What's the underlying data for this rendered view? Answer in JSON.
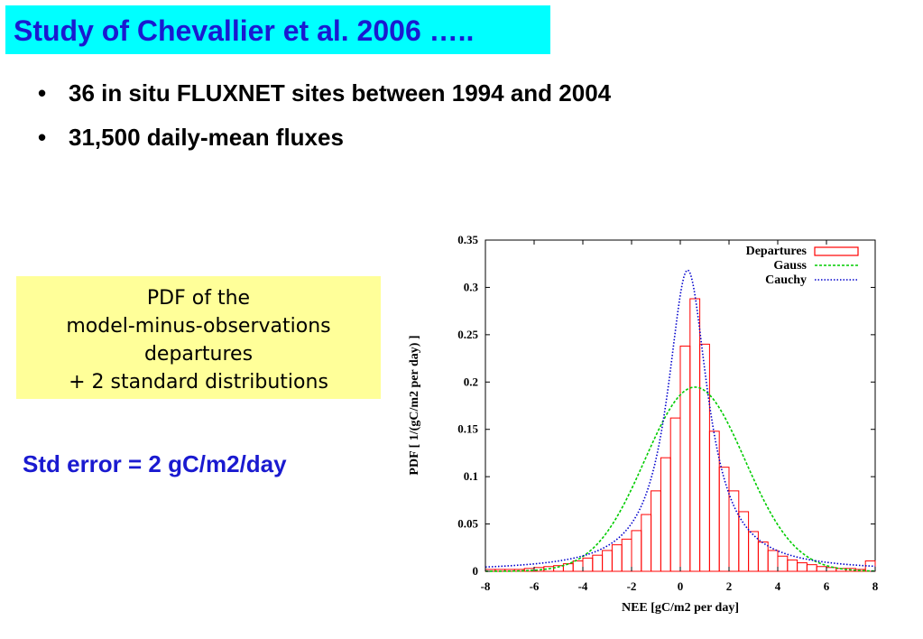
{
  "slide": {
    "title": "Study of Chevallier et al. 2006 …..",
    "bullets": [
      "36 in situ FLUXNET sites between 1994 and 2004",
      "31,500 daily-mean fluxes"
    ],
    "bullet_glyph": "•",
    "note_lines": [
      "PDF of the",
      "model-minus-observations",
      "departures",
      "+ 2 standard distributions"
    ],
    "std_error": "Std error = 2 gC/m2/day",
    "colors": {
      "title_bg": "#00ffff",
      "title_text": "#1a1ad0",
      "note_bg": "#ffff99",
      "std_error_text": "#1a1ad0"
    }
  },
  "chart_data": {
    "type": "bar",
    "xlabel": "NEE [gC/m2 per day]",
    "ylabel": "PDF [ 1/(gC/m2 per day) ]",
    "xlim": [
      -8,
      8
    ],
    "ylim": [
      0,
      0.35
    ],
    "x_ticks": [
      "-8",
      "-6",
      "-4",
      "-2",
      "0",
      "2",
      "4",
      "6",
      "8"
    ],
    "y_ticks": [
      "0",
      "0.05",
      "0.1",
      "0.15",
      "0.2",
      "0.25",
      "0.3",
      "0.35"
    ],
    "legend_position": "top-right",
    "series": [
      {
        "name": "Departures",
        "style": "histogram",
        "color": "#ff0000",
        "bin_width": 0.4,
        "bin_starts": [
          -8.0,
          -7.6,
          -7.2,
          -6.8,
          -6.4,
          -6.0,
          -5.6,
          -5.2,
          -4.8,
          -4.4,
          -4.0,
          -3.6,
          -3.2,
          -2.8,
          -2.4,
          -2.0,
          -1.6,
          -1.2,
          -0.8,
          -0.4,
          0.0,
          0.4,
          0.8,
          1.2,
          1.6,
          2.0,
          2.4,
          2.8,
          3.2,
          3.6,
          4.0,
          4.4,
          4.8,
          5.2,
          5.6,
          6.0,
          6.4,
          6.8,
          7.2,
          7.6
        ],
        "values": [
          0.002,
          0.002,
          0.002,
          0.002,
          0.003,
          0.004,
          0.005,
          0.006,
          0.008,
          0.011,
          0.014,
          0.017,
          0.022,
          0.028,
          0.034,
          0.043,
          0.06,
          0.085,
          0.12,
          0.162,
          0.238,
          0.288,
          0.24,
          0.148,
          0.11,
          0.085,
          0.063,
          0.042,
          0.031,
          0.022,
          0.016,
          0.012,
          0.009,
          0.007,
          0.005,
          0.004,
          0.003,
          0.003,
          0.002,
          0.011
        ]
      },
      {
        "name": "Gauss",
        "style": "dashed-line",
        "color": "#00cc00",
        "mean": 0.6,
        "sigma": 2.05
      },
      {
        "name": "Cauchy",
        "style": "dotted-line",
        "color": "#0000cc",
        "location": 0.3,
        "scale": 1.0
      }
    ]
  }
}
